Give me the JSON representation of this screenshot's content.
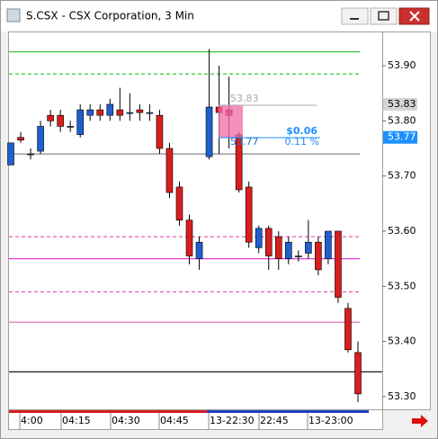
{
  "window": {
    "title": "S.CSX - CSX Corporation, 3 Min"
  },
  "chart_data": {
    "type": "candlestick",
    "open": [
      53.72,
      53.77,
      53.74,
      53.745,
      53.81,
      53.81,
      53.79,
      53.775,
      53.81,
      53.82,
      53.81,
      53.82,
      53.815,
      53.82,
      53.815,
      53.81,
      53.75,
      53.68,
      53.62,
      53.55,
      53.735,
      53.825,
      53.82,
      53.775,
      53.68,
      53.57,
      53.605,
      53.59,
      53.55,
      53.555,
      53.56,
      53.58,
      53.55,
      53.6,
      53.46,
      53.38
    ],
    "high": [
      53.76,
      53.78,
      53.75,
      53.8,
      53.82,
      53.82,
      53.8,
      53.83,
      53.83,
      53.83,
      53.84,
      53.86,
      53.85,
      53.83,
      53.83,
      53.82,
      53.76,
      53.69,
      53.63,
      53.59,
      53.93,
      53.9,
      53.88,
      53.78,
      53.69,
      53.61,
      53.61,
      53.6,
      53.59,
      53.565,
      53.62,
      53.59,
      53.6,
      53.6,
      53.47,
      53.4
    ],
    "low": [
      53.72,
      53.76,
      53.73,
      53.74,
      53.79,
      53.78,
      53.78,
      53.77,
      53.8,
      53.8,
      53.8,
      53.8,
      53.8,
      53.8,
      53.8,
      53.74,
      53.66,
      53.61,
      53.54,
      53.53,
      53.73,
      53.74,
      53.75,
      53.67,
      53.57,
      53.56,
      53.53,
      53.53,
      53.54,
      53.545,
      53.55,
      53.52,
      53.54,
      53.47,
      53.38,
      53.29
    ],
    "close": [
      53.76,
      53.765,
      53.74,
      53.79,
      53.8,
      53.79,
      53.79,
      53.82,
      53.82,
      53.81,
      53.83,
      53.81,
      53.815,
      53.815,
      53.815,
      53.75,
      53.67,
      53.62,
      53.555,
      53.58,
      53.825,
      53.815,
      53.81,
      53.675,
      53.58,
      53.605,
      53.555,
      53.55,
      53.58,
      53.555,
      53.58,
      53.53,
      53.6,
      53.48,
      53.385,
      53.305
    ],
    "up_color": "#1f5fd0",
    "down_color": "#d81e1e",
    "ylim": [
      53.277,
      53.962
    ],
    "yticks": [
      {
        "value": 53.3,
        "label": "53.30"
      },
      {
        "value": 53.4,
        "label": "53.40"
      },
      {
        "value": 53.5,
        "label": "53.50"
      },
      {
        "value": 53.6,
        "label": "53.60"
      },
      {
        "value": 53.7,
        "label": "53.70"
      },
      {
        "value": 53.8,
        "label": "53.80"
      },
      {
        "value": 53.9,
        "label": "53.90"
      }
    ],
    "x_labels": [
      "4:00",
      "04:15",
      "04:30",
      "04:45",
      "13-22:30",
      "22:45",
      "13-23:00"
    ],
    "levels": [
      {
        "value": 53.925,
        "color": "#22c322",
        "dash": false
      },
      {
        "value": 53.885,
        "color": "#22c322",
        "dash": true
      },
      {
        "value": 53.74,
        "color": "#888888",
        "dash": false
      },
      {
        "value": 53.59,
        "color": "#e060b0",
        "dash": true
      },
      {
        "value": 53.55,
        "color": "#e040d0",
        "dash": false
      },
      {
        "value": 53.49,
        "color": "#e060b0",
        "dash": true
      },
      {
        "value": 53.435,
        "color": "#e070c0",
        "dash": false
      },
      {
        "value": 53.345,
        "color": "#000000",
        "dash": false
      }
    ],
    "price_labels": [
      {
        "value": 53.83,
        "label": "53.83",
        "color": "#d4d4d4",
        "text_color": "#000000"
      },
      {
        "value": 53.77,
        "label": "53.77",
        "color": "#1e8fff",
        "text_color": "#ffffff"
      }
    ],
    "annotations": [
      "53.83",
      "$0.06",
      "53.77",
      "0.11 %"
    ]
  }
}
